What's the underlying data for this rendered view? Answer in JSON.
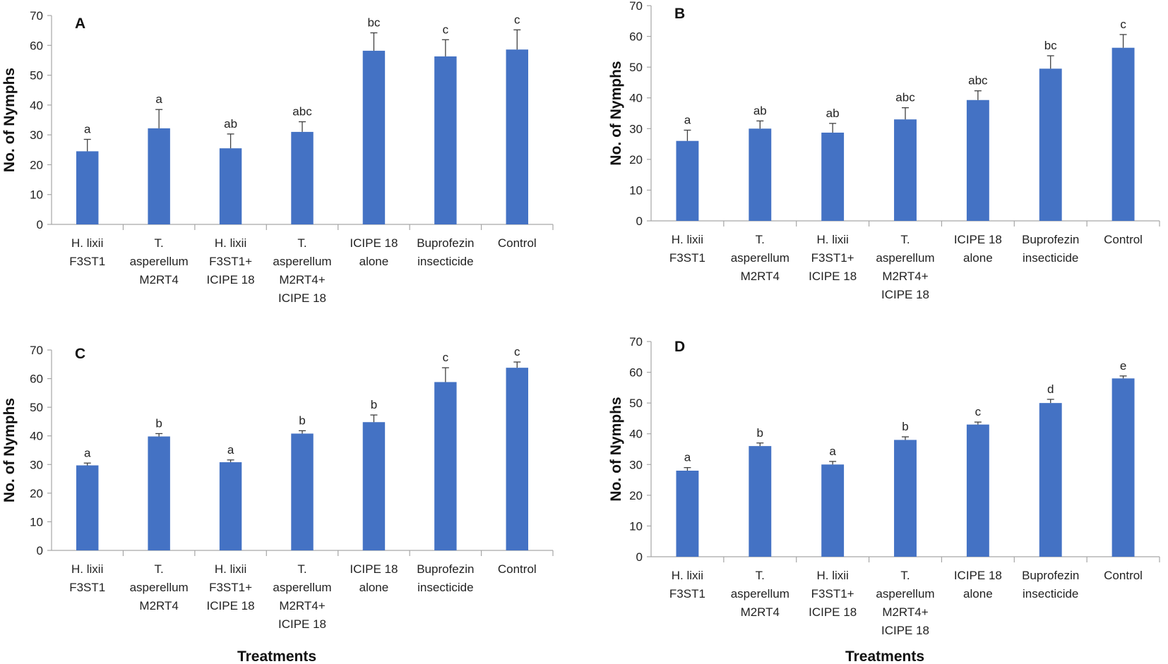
{
  "figure": {
    "x_title_bottom_left": "Treatments",
    "x_title_bottom_right": "Treatments"
  },
  "colors": {
    "bar": "#4472C4",
    "axis": "#A6A6A6",
    "error": "#404040",
    "text": "#222222"
  },
  "chart_data": [
    {
      "type": "bar",
      "panel": "A",
      "ylabel": "No. of Nymphs",
      "ylim": [
        0,
        70
      ],
      "yticks": [
        0,
        10,
        20,
        30,
        40,
        50,
        60,
        70
      ],
      "categories": [
        [
          "H. lixii",
          "F3ST1"
        ],
        [
          "T.",
          "asperellum",
          "M2RT4"
        ],
        [
          "H. lixii",
          "F3ST1+",
          "ICIPE 18"
        ],
        [
          "T.",
          "asperellum",
          "M2RT4+",
          "ICIPE 18"
        ],
        [
          "ICIPE 18",
          "alone"
        ],
        [
          "Buprofezin",
          "insecticide"
        ],
        [
          "Control"
        ]
      ],
      "values": [
        24.5,
        32.2,
        25.5,
        31.0,
        58.2,
        56.3,
        58.6
      ],
      "errors": [
        4.0,
        6.3,
        4.8,
        3.4,
        6.0,
        5.6,
        6.6
      ],
      "significance": [
        "a",
        "a",
        "ab",
        "abc",
        "bc",
        "c",
        "c"
      ]
    },
    {
      "type": "bar",
      "panel": "B",
      "ylabel": "No. of Nymphs",
      "ylim": [
        0,
        70
      ],
      "yticks": [
        0,
        10,
        20,
        30,
        40,
        50,
        60,
        70
      ],
      "categories": [
        [
          "H. lixii",
          "F3ST1"
        ],
        [
          "T.",
          "asperellum",
          "M2RT4"
        ],
        [
          "H. lixii",
          "F3ST1+",
          "ICIPE 18"
        ],
        [
          "T.",
          "asperellum",
          "M2RT4+",
          "ICIPE 18"
        ],
        [
          "ICIPE 18",
          "alone"
        ],
        [
          "Buprofezin",
          "insecticide"
        ],
        [
          "Control"
        ]
      ],
      "values": [
        26.0,
        30.0,
        28.7,
        33.0,
        39.3,
        49.5,
        56.3
      ],
      "errors": [
        3.5,
        2.5,
        3.0,
        3.8,
        3.0,
        4.2,
        4.3
      ],
      "significance": [
        "a",
        "ab",
        "ab",
        "abc",
        "abc",
        "bc",
        "c"
      ]
    },
    {
      "type": "bar",
      "panel": "C",
      "ylabel": "No. of Nymphs",
      "ylim": [
        0,
        70
      ],
      "yticks": [
        0,
        10,
        20,
        30,
        40,
        50,
        60,
        70
      ],
      "categories": [
        [
          "H. lixii",
          "F3ST1"
        ],
        [
          "T.",
          "asperellum",
          "M2RT4"
        ],
        [
          "H. lixii",
          "F3ST1+",
          "ICIPE 18"
        ],
        [
          "T.",
          "asperellum",
          "M2RT4+",
          "ICIPE 18"
        ],
        [
          "ICIPE 18",
          "alone"
        ],
        [
          "Buprofezin",
          "insecticide"
        ],
        [
          "Control"
        ]
      ],
      "values": [
        29.7,
        39.8,
        30.8,
        40.8,
        44.8,
        58.8,
        63.8
      ],
      "errors": [
        0.8,
        1.0,
        0.8,
        1.0,
        2.5,
        5.0,
        2.0
      ],
      "significance": [
        "a",
        "b",
        "a",
        "b",
        "b",
        "c",
        "c"
      ]
    },
    {
      "type": "bar",
      "panel": "D",
      "ylabel": "No. of Nymphs",
      "ylim": [
        0,
        70
      ],
      "yticks": [
        0,
        10,
        20,
        30,
        40,
        50,
        60,
        70
      ],
      "categories": [
        [
          "H. lixii",
          "F3ST1"
        ],
        [
          "T.",
          "asperellum",
          "M2RT4"
        ],
        [
          "H. lixii",
          "F3ST1+",
          "ICIPE 18"
        ],
        [
          "T.",
          "asperellum",
          "M2RT4+",
          "ICIPE 18"
        ],
        [
          "ICIPE 18",
          "alone"
        ],
        [
          "Buprofezin",
          "insecticide"
        ],
        [
          "Control"
        ]
      ],
      "values": [
        28.0,
        36.0,
        30.0,
        38.0,
        43.0,
        50.0,
        58.0
      ],
      "errors": [
        1.0,
        1.0,
        1.0,
        1.0,
        0.8,
        1.2,
        0.8
      ],
      "significance": [
        "a",
        "b",
        "a",
        "b",
        "c",
        "d",
        "e"
      ]
    }
  ]
}
